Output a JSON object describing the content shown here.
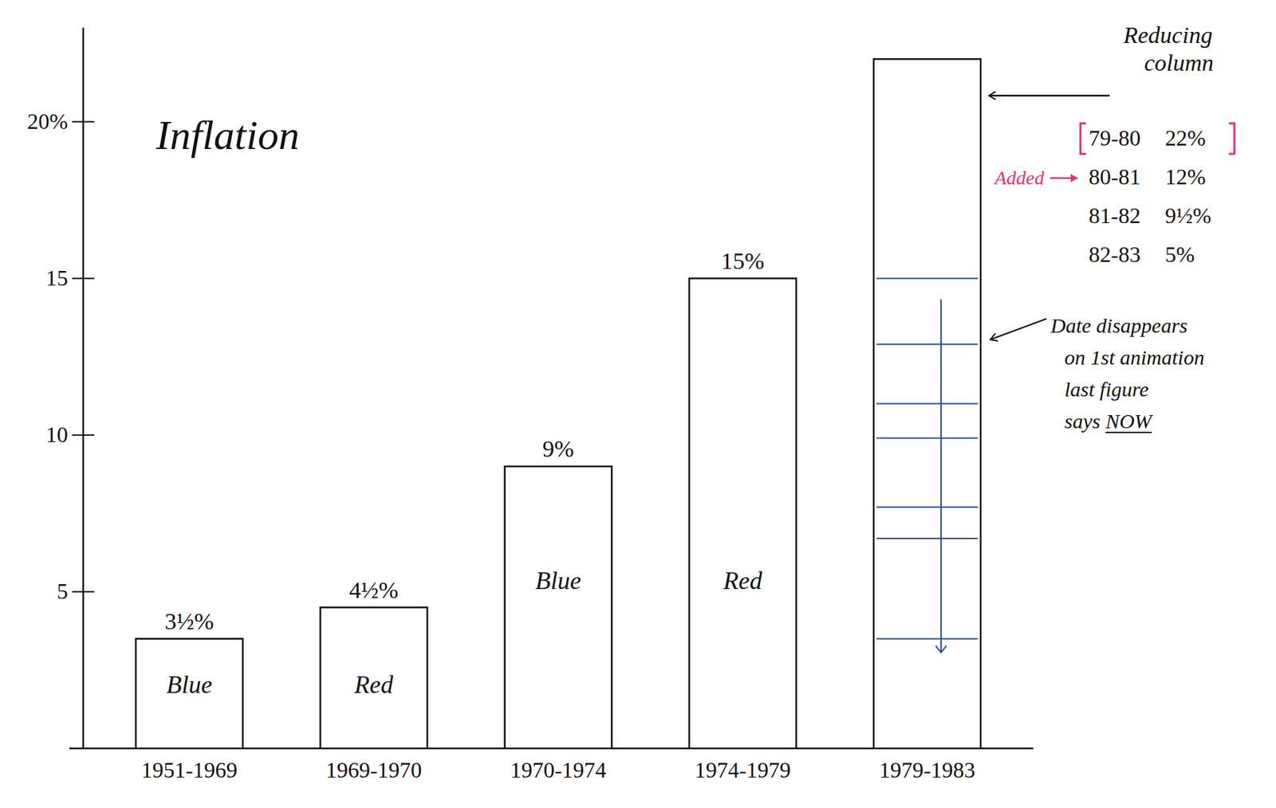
{
  "chart_data": {
    "type": "bar",
    "title": "Inflation",
    "categories": [
      "1951-1969",
      "1969-1970",
      "1970-1974",
      "1974-1979",
      "1979-1983"
    ],
    "values": [
      3.5,
      4.5,
      9,
      15,
      22
    ],
    "value_labels": [
      "3½%",
      "4½%",
      "9%",
      "15%",
      null
    ],
    "data_labels": true,
    "bar_texts": [
      "Blue",
      "Red",
      "Blue",
      "Red",
      null
    ],
    "ylim": [
      0,
      23
    ],
    "yticks": [
      5,
      10,
      15,
      {
        "value": 20,
        "label": "20%"
      }
    ],
    "grid": false,
    "animation_levels": [
      15,
      12.9,
      11,
      9.9,
      7.7,
      6.7,
      3.5
    ],
    "annotations": {
      "column_note": "Reducing column",
      "added_note": "Added",
      "schedule": [
        {
          "period": "79-80",
          "label": "22%"
        },
        {
          "period": "80-81",
          "label": "12%"
        },
        {
          "period": "81-82",
          "label": "9½%"
        },
        {
          "period": "82-83",
          "label": "5%"
        }
      ],
      "date_note": [
        "Date disappears",
        "on 1st animation",
        "last figure",
        "says NOW"
      ]
    }
  }
}
